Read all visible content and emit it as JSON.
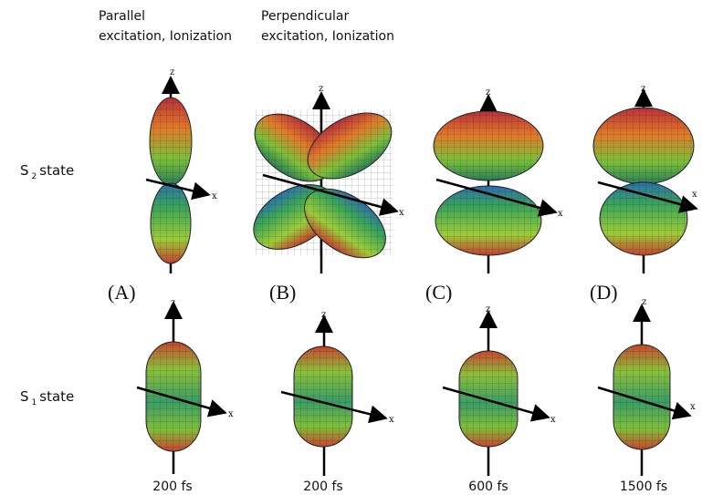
{
  "columns": [
    {
      "lines": [
        "Parallel",
        "excitation,  Ionization"
      ]
    },
    {
      "lines": [
        "Perpendicular",
        "excitation, Ionization"
      ]
    }
  ],
  "rows": [
    {
      "label": "S",
      "subscript": "2",
      "suffix": "state"
    },
    {
      "label": "S",
      "subscript": "1",
      "suffix": "state"
    }
  ],
  "panels": [
    "(A)",
    "(B)",
    "(C)",
    "(D)"
  ],
  "plots": [
    {
      "z": "z",
      "x": "x"
    },
    {
      "z": "z",
      "x": "x"
    },
    {
      "z": "z",
      "x": "x"
    },
    {
      "z": "z",
      "x": "x"
    },
    {
      "z": "z",
      "x": "x"
    },
    {
      "z": "z",
      "x": "x"
    },
    {
      "z": "z",
      "x": "x"
    },
    {
      "z": "z",
      "x": "x"
    }
  ],
  "times": [
    "200 fs",
    "200 fs",
    "600 fs",
    "1500 fs"
  ]
}
